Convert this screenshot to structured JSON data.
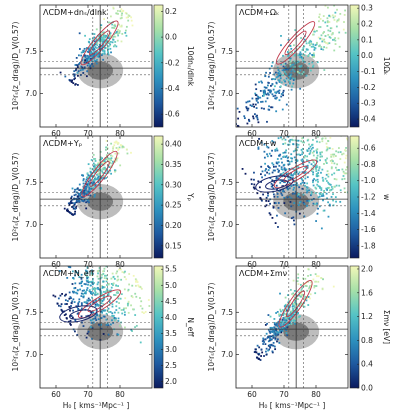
{
  "figure": {
    "xlabel": "H₀ [ kms⁻¹Mpc⁻¹ ]",
    "ylabel": "10²rₛ(z_drag)/D_V(0.57)"
  },
  "chart_data": [
    {
      "type": "scatter",
      "title": "ΛCDM+dnₛ/dlnk",
      "colorbar_label": "10dnₛ/dlnk",
      "colorbar_ticks": [
        "0.2",
        "0.0",
        "-0.2",
        "-0.4",
        "-0.6"
      ],
      "colorbar_range": [
        -0.7,
        0.25
      ],
      "xlim": [
        55,
        90
      ],
      "ylim": [
        6.6,
        8.05
      ],
      "x_ticks": [
        "60",
        "70",
        "80"
      ],
      "y_ticks": [
        "7.0",
        "7.5"
      ],
      "cloud": {
        "x0": 64.5,
        "y0": 7.15,
        "x1": 82,
        "y1": 7.95,
        "width": 0.05,
        "density": 0.9
      }
    },
    {
      "type": "scatter",
      "title": "ΛCDM+Ωₖ",
      "colorbar_label": "10Ωₖ",
      "colorbar_ticks": [
        "0.3",
        "0.2",
        "0.1",
        "0.0",
        "-0.1",
        "-0.2",
        "-0.3",
        "-0.4"
      ],
      "colorbar_range": [
        -0.45,
        0.32
      ],
      "xlim": [
        55,
        90
      ],
      "ylim": [
        6.6,
        8.05
      ],
      "x_ticks": [
        "60",
        "70",
        "80"
      ],
      "y_ticks": [
        "7.0",
        "7.5"
      ],
      "cloud": {
        "x0": 56,
        "y0": 6.6,
        "x1": 90,
        "y1": 8.05,
        "width": 0.08,
        "density": 1.0
      }
    },
    {
      "type": "scatter",
      "title": "ΛCDM+Yₚ",
      "colorbar_label": "Yₚ",
      "colorbar_ticks": [
        "0.40",
        "0.35",
        "0.30",
        "0.25",
        "0.20",
        "0.15"
      ],
      "colorbar_range": [
        0.12,
        0.42
      ],
      "xlim": [
        55,
        90
      ],
      "ylim": [
        6.6,
        8.05
      ],
      "x_ticks": [
        "60",
        "70",
        "80"
      ],
      "y_ticks": [
        "7.0",
        "7.5"
      ],
      "cloud": {
        "x0": 64,
        "y0": 7.15,
        "x1": 80,
        "y1": 7.95,
        "width": 0.05,
        "density": 0.9
      }
    },
    {
      "type": "scatter",
      "title": "ΛCDM+w",
      "colorbar_label": "w",
      "colorbar_ticks": [
        "-0.6",
        "-0.8",
        "-1.0",
        "-1.2",
        "-1.4",
        "-1.6",
        "-1.8"
      ],
      "colorbar_range": [
        -1.95,
        -0.45
      ],
      "xlim": [
        55,
        90
      ],
      "ylim": [
        6.6,
        8.05
      ],
      "x_ticks": [
        "60",
        "70",
        "80"
      ],
      "y_ticks": [
        "7.0",
        "7.5"
      ],
      "cloud": {
        "x0": 62,
        "y0": 7.35,
        "x1": 90,
        "y1": 8.0,
        "width": 0.22,
        "density": 1.6
      }
    },
    {
      "type": "scatter",
      "title": "ΛCDM+N_eff",
      "colorbar_label": "N_eff",
      "colorbar_ticks": [
        "5.5",
        "5.0",
        "4.5",
        "4.0",
        "3.5",
        "3.0",
        "2.5",
        "2.0"
      ],
      "colorbar_range": [
        1.8,
        5.6
      ],
      "xlim": [
        55,
        90
      ],
      "ylim": [
        6.6,
        8.05
      ],
      "x_ticks": [
        "60",
        "70",
        "80"
      ],
      "y_ticks": [
        "7.0",
        "7.5"
      ],
      "cloud": {
        "x0": 63,
        "y0": 7.45,
        "x1": 84,
        "y1": 7.95,
        "width": 0.18,
        "density": 1.2
      }
    },
    {
      "type": "scatter",
      "title": "ΛCDM+Σmν",
      "colorbar_label": "Σmν [eV]",
      "colorbar_ticks": [
        "2.0",
        "1.6",
        "1.2",
        "0.8",
        "0.4",
        "0.0"
      ],
      "colorbar_range": [
        0.0,
        2.05
      ],
      "xlim": [
        55,
        90
      ],
      "ylim": [
        6.6,
        8.05
      ],
      "x_ticks": [
        "60",
        "70",
        "80"
      ],
      "y_ticks": [
        "7.0",
        "7.5"
      ],
      "cloud": {
        "x0": 62,
        "y0": 6.95,
        "x1": 80,
        "y1": 7.95,
        "width": 0.05,
        "density": 0.9
      }
    }
  ],
  "colors": {
    "colormap": [
      "#0b1a5e",
      "#1e5aa0",
      "#2e93bf",
      "#55c4c5",
      "#a6e0a8",
      "#f2f7b8"
    ],
    "red_contour": "#c0394b",
    "navy_contour": "#1d2a6e",
    "gray_ellipse_outer": "#bdbdbd",
    "gray_ellipse_inner": "#7a7a7a"
  }
}
